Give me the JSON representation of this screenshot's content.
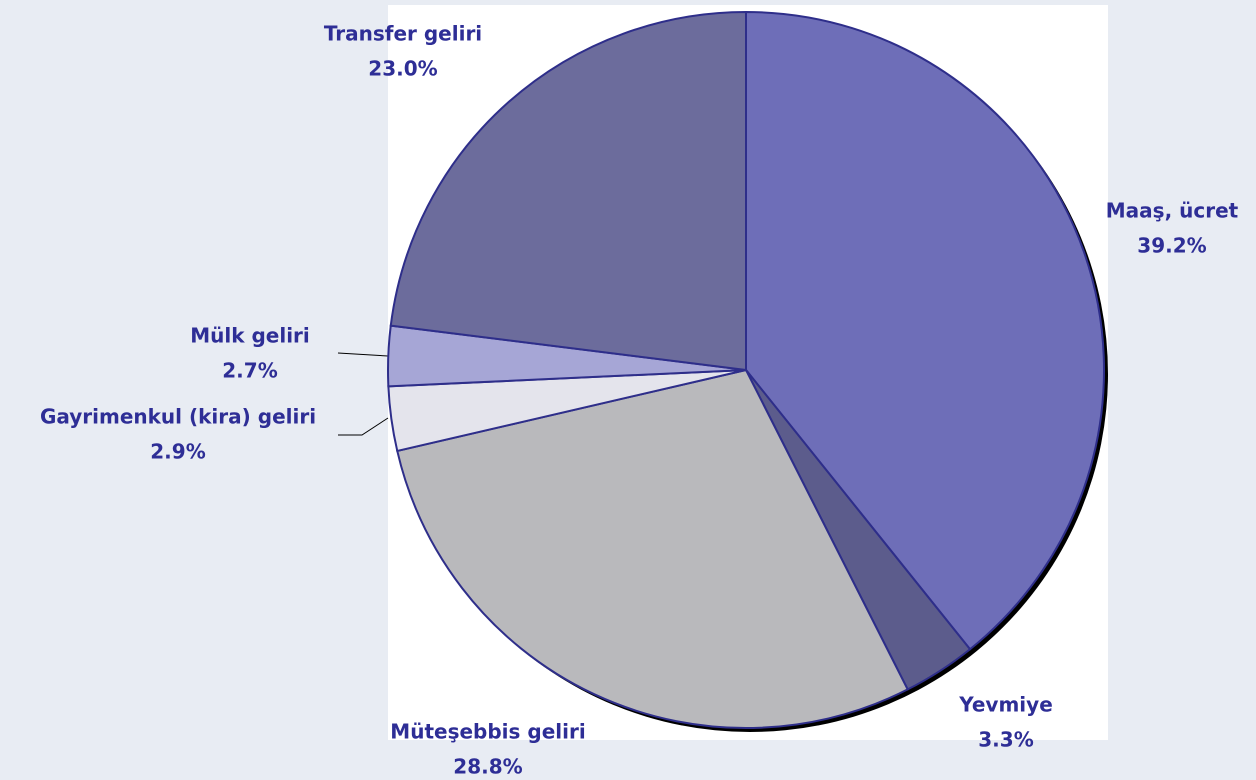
{
  "chart_data": {
    "type": "pie",
    "categories": [
      "Maaş, ücret",
      "Yevmiye",
      "Müteşebbis geliri",
      "Gayrimenkul (kira) geliri",
      "Mülk geliri",
      "Transfer geliri"
    ],
    "values": [
      39.2,
      3.3,
      28.8,
      2.9,
      2.7,
      23.0
    ],
    "value_labels": [
      "39.2%",
      "3.3%",
      "28.8%",
      "2.9%",
      "2.7%",
      "23.0%"
    ],
    "colors": [
      "#6e6eb8",
      "#5c5c8c",
      "#b9b9bc",
      "#e4e4ec",
      "#a6a6d6",
      "#6c6c9c"
    ]
  }
}
